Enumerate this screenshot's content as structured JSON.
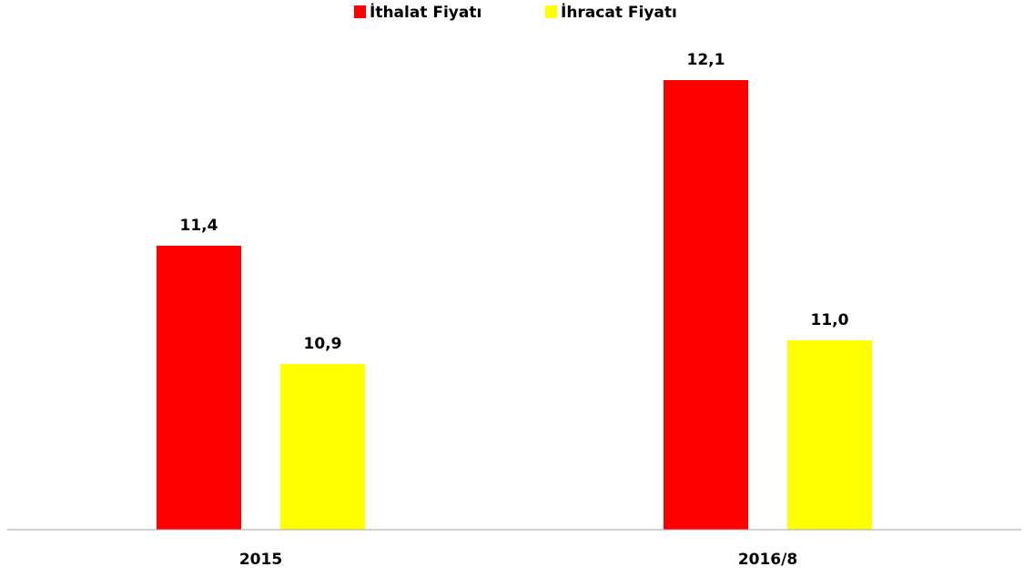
{
  "chart_data": {
    "type": "bar",
    "categories": [
      "2015",
      "2016/8"
    ],
    "series": [
      {
        "name": "İthalat Fiyatı",
        "color": "#ff0000",
        "values": [
          11.4,
          12.1
        ],
        "value_labels": [
          "11,4",
          "12,1"
        ]
      },
      {
        "name": "İhracat Fiyatı",
        "color": "#ffff00",
        "values": [
          10.9,
          11.0
        ],
        "value_labels": [
          "10,9",
          "11,0"
        ]
      }
    ],
    "ylim": [
      10.2,
      12.2
    ],
    "legend": "top"
  }
}
